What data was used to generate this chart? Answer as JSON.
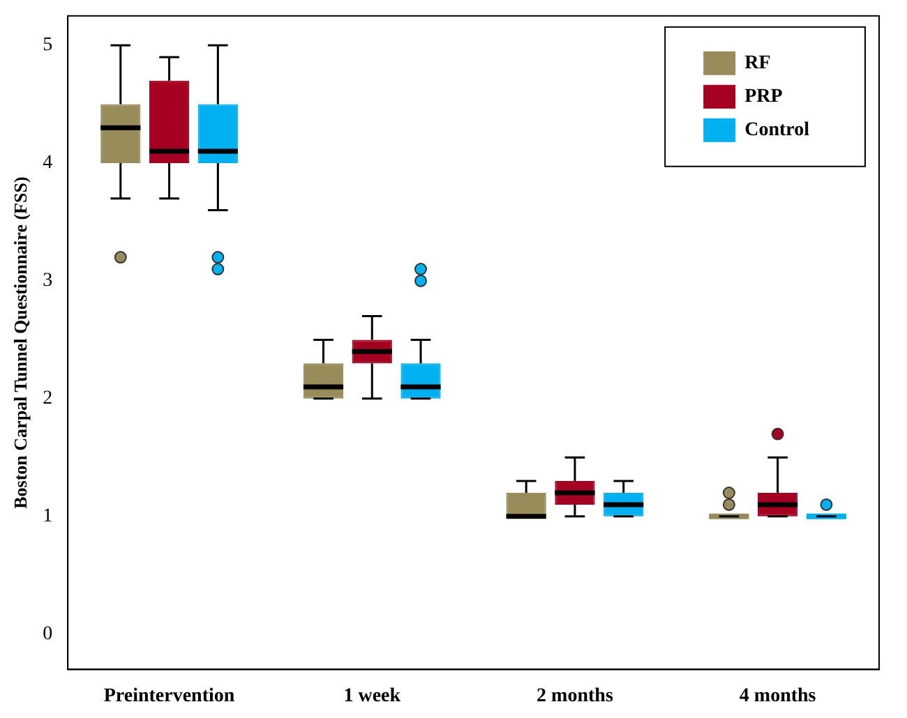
{
  "chart_data": {
    "type": "box",
    "ylabel": "Boston Carpal Tunnel Questionnaire (FSS)",
    "categories": [
      "Preintervention",
      "1 week",
      "2 months",
      "4 months"
    ],
    "ylim": [
      -0.3,
      5.25
    ],
    "yticks": [
      0,
      1,
      2,
      3,
      4,
      5
    ],
    "grid": false,
    "legend": "top right",
    "series": [
      {
        "name": "RF",
        "color": "#978c5a",
        "boxes": [
          {
            "low": 3.7,
            "q1": 4.0,
            "median": 4.3,
            "q3": 4.5,
            "high": 5.0,
            "outliers": [
              3.2
            ]
          },
          {
            "low": 2.0,
            "q1": 2.0,
            "median": 2.1,
            "q3": 2.3,
            "high": 2.5
          },
          {
            "low": 1.0,
            "q1": 1.0,
            "median": 1.0,
            "q3": 1.2,
            "high": 1.3
          },
          {
            "low": 1.0,
            "q1": 1.0,
            "median": 1.0,
            "q3": 1.0,
            "high": 1.0,
            "outliers": [
              1.1,
              1.2
            ]
          }
        ]
      },
      {
        "name": "PRP",
        "color": "#a50021",
        "boxes": [
          {
            "low": 3.7,
            "q1": 4.0,
            "median": 4.1,
            "q3": 4.7,
            "high": 4.9
          },
          {
            "low": 2.0,
            "q1": 2.3,
            "median": 2.4,
            "q3": 2.5,
            "high": 2.7
          },
          {
            "low": 1.0,
            "q1": 1.1,
            "median": 1.2,
            "q3": 1.3,
            "high": 1.5
          },
          {
            "low": 1.0,
            "q1": 1.0,
            "median": 1.1,
            "q3": 1.2,
            "high": 1.5,
            "outliers": [
              1.7
            ]
          }
        ]
      },
      {
        "name": "Control",
        "color": "#00b0f0",
        "boxes": [
          {
            "low": 3.6,
            "q1": 4.0,
            "median": 4.1,
            "q3": 4.5,
            "high": 5.0,
            "outliers": [
              3.1,
              3.2
            ]
          },
          {
            "low": 2.0,
            "q1": 2.0,
            "median": 2.1,
            "q3": 2.3,
            "high": 2.5,
            "outliers": [
              3.0,
              3.1
            ]
          },
          {
            "low": 1.0,
            "q1": 1.0,
            "median": 1.1,
            "q3": 1.2,
            "high": 1.3
          },
          {
            "low": 1.0,
            "q1": 1.0,
            "median": 1.0,
            "q3": 1.0,
            "high": 1.0,
            "outliers": [
              1.1
            ]
          }
        ]
      }
    ]
  }
}
